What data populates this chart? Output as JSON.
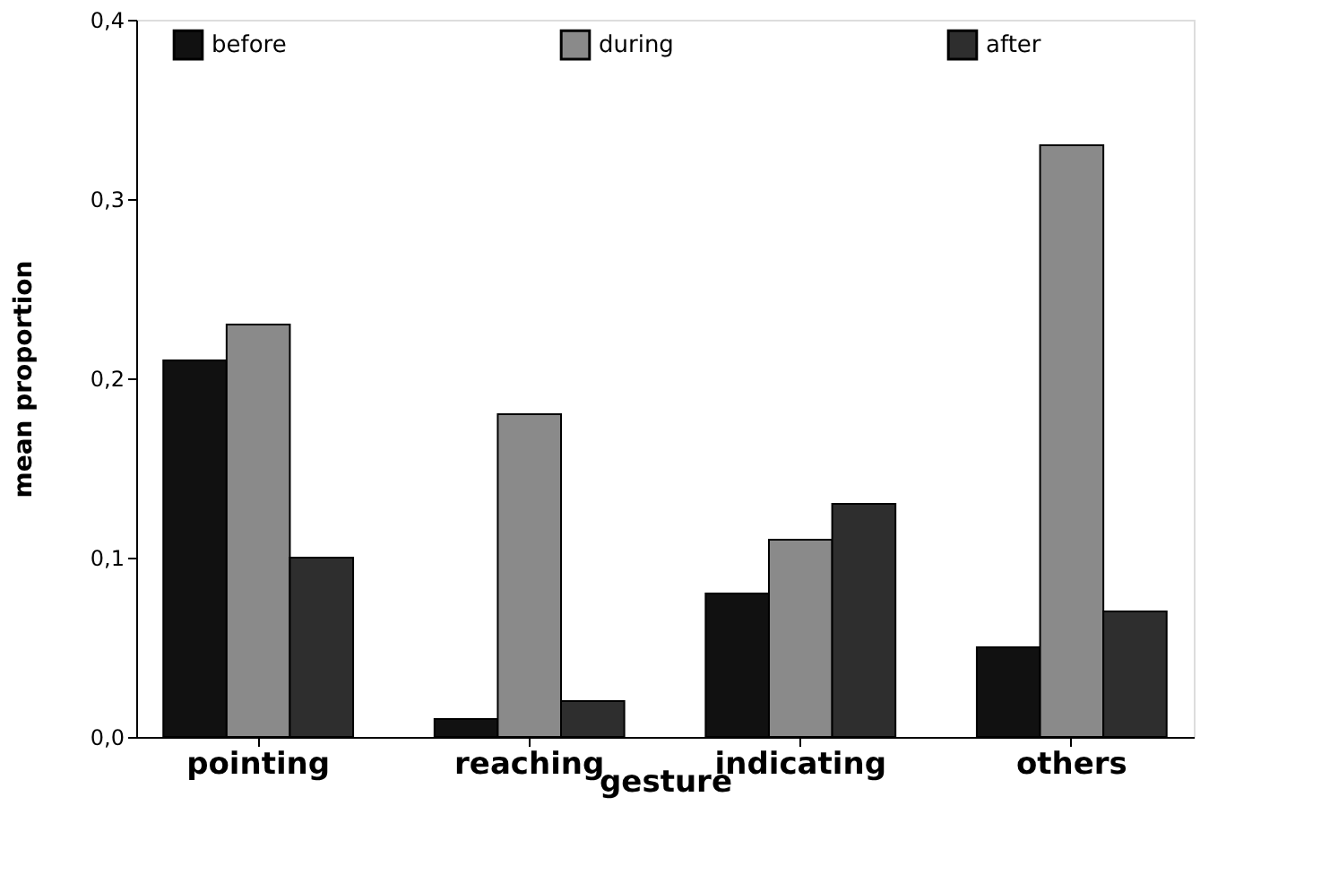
{
  "chart_data": {
    "type": "bar",
    "xlabel": "gesture",
    "ylabel": "mean proportion",
    "categories": [
      "pointing",
      "reaching",
      "indicating",
      "others"
    ],
    "series": [
      {
        "name": "before",
        "color": "#111111",
        "values": [
          0.21,
          0.01,
          0.08,
          0.05
        ]
      },
      {
        "name": "during",
        "color": "#8a8a8a",
        "values": [
          0.23,
          0.18,
          0.11,
          0.33
        ]
      },
      {
        "name": "after",
        "color": "#2e2e2e",
        "values": [
          0.1,
          0.02,
          0.13,
          0.07
        ]
      }
    ],
    "ylim": [
      0,
      0.4
    ],
    "yticks": [
      {
        "value": 0,
        "label": "0,0"
      },
      {
        "value": 0.1,
        "label": "0,1"
      },
      {
        "value": 0.2,
        "label": "0,2"
      },
      {
        "value": 0.3,
        "label": "0,3"
      },
      {
        "value": 0.4,
        "label": "0,4"
      }
    ],
    "grid": false,
    "legend": "top"
  }
}
